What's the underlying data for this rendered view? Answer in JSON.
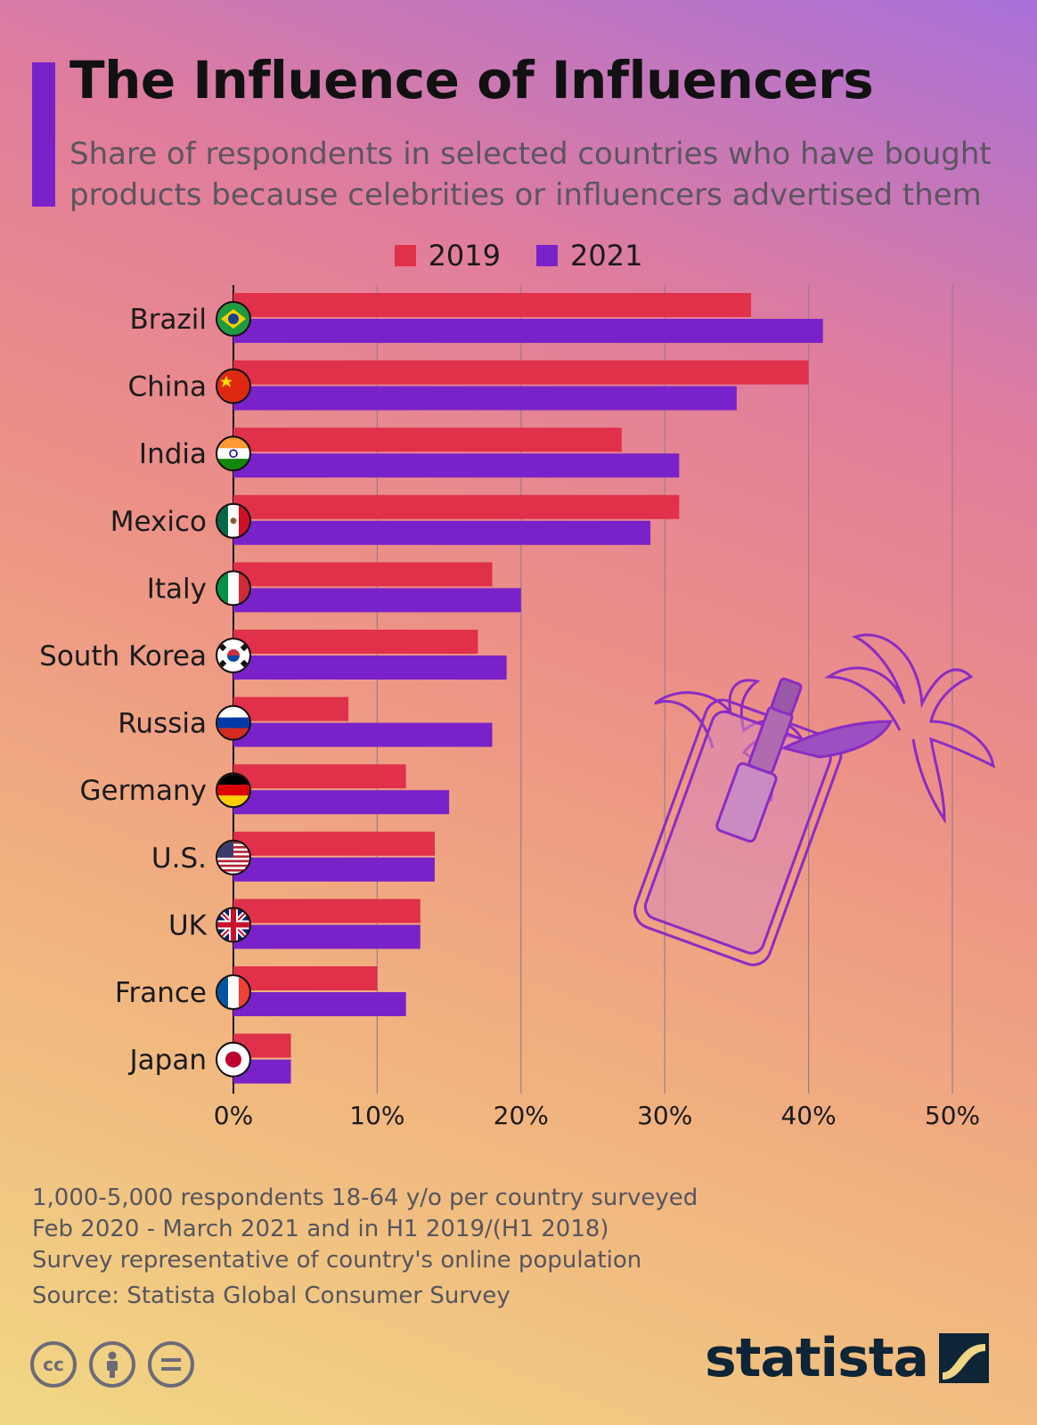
{
  "title": "The Influence of Influencers",
  "subtitle": "Share of respondents in selected countries who have bought products because celebrities or influencers advertised them",
  "legend": [
    {
      "label": "2019",
      "color": "#e0304a"
    },
    {
      "label": "2021",
      "color": "#7a22c9"
    }
  ],
  "chart_data": {
    "type": "bar",
    "orientation": "horizontal",
    "categories": [
      "Brazil",
      "China",
      "India",
      "Mexico",
      "Italy",
      "South Korea",
      "Russia",
      "Germany",
      "U.S.",
      "UK",
      "France",
      "Japan"
    ],
    "series": [
      {
        "name": "2019",
        "color": "#e0304a",
        "values": [
          36,
          40,
          27,
          31,
          18,
          17,
          8,
          12,
          14,
          13,
          10,
          4
        ]
      },
      {
        "name": "2021",
        "color": "#7a22c9",
        "values": [
          41,
          35,
          31,
          29,
          20,
          19,
          18,
          15,
          14,
          13,
          12,
          4
        ]
      }
    ],
    "xlim": [
      0,
      50
    ],
    "xticks": [
      0,
      10,
      20,
      30,
      40,
      50
    ],
    "xtick_labels": [
      "0%",
      "10%",
      "20%",
      "30%",
      "40%",
      "50%"
    ],
    "grid": true
  },
  "flags": [
    "brazil-flag-icon",
    "china-flag-icon",
    "india-flag-icon",
    "mexico-flag-icon",
    "italy-flag-icon",
    "south-korea-flag-icon",
    "russia-flag-icon",
    "germany-flag-icon",
    "us-flag-icon",
    "uk-flag-icon",
    "france-flag-icon",
    "japan-flag-icon"
  ],
  "footnotes": [
    "1,000-5,000 respondents 18-64 y/o per country surveyed",
    "Feb 2020 - March 2021 and in H1 2019/(H1 2018)",
    "Survey representative of country's online population"
  ],
  "source": "Source: Statista Global Consumer Survey",
  "license_icons": [
    "cc-icon",
    "attribution-icon",
    "no-derivatives-icon"
  ],
  "brand": "statista",
  "illustration": "phone-lipstick-palm-illustration"
}
